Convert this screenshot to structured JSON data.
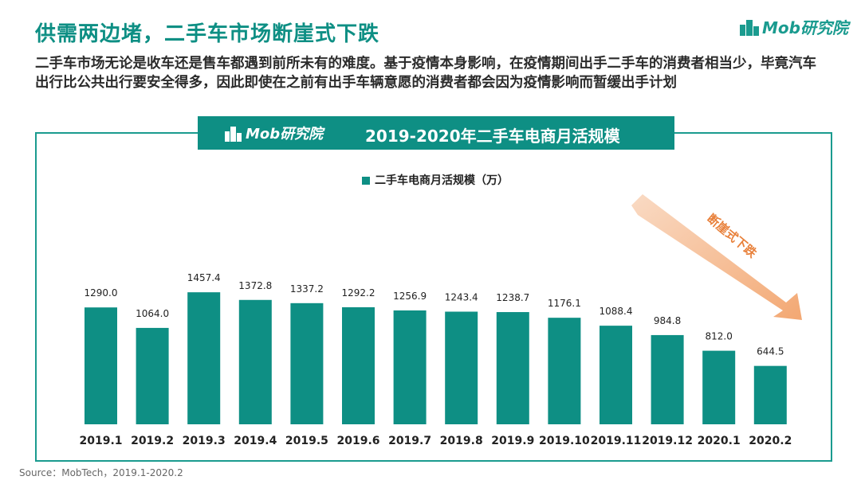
{
  "header": {
    "title": "供需两边堵，二手车市场断崖式下跌",
    "brand": "Mob研究院",
    "intro": "二手车市场无论是收车还是售车都遇到前所未有的难度。基于疫情本身影响，在疫情期间出手二手车的消费者相当少，毕竟汽车出行比公共出行要安全得多，因此即使在之前有出手车辆意愿的消费者都会因为疫情影响而暂缓出手计划"
  },
  "banner": {
    "brand": "Mob研究院",
    "title": "2019-2020年二手车电商月活规模"
  },
  "annotation": "断崖式下跌",
  "source": "Source：MobTech，2019.1-2020.2",
  "colors": {
    "bar": "#0e8f84",
    "accent": "#f2a36b"
  },
  "chart_data": {
    "type": "bar",
    "categories": [
      "2019.1",
      "2019.2",
      "2019.3",
      "2019.4",
      "2019.5",
      "2019.6",
      "2019.7",
      "2019.8",
      "2019.9",
      "2019.10",
      "2019.11",
      "2019.12",
      "2020.1",
      "2020.2"
    ],
    "series": [
      {
        "name": "二手车电商月活规模（万）",
        "values": [
          1290.0,
          1064.0,
          1457.4,
          1372.8,
          1337.2,
          1292.2,
          1256.9,
          1243.4,
          1238.7,
          1176.1,
          1088.4,
          984.8,
          812.0,
          644.5
        ]
      }
    ],
    "ylim": [
      0,
      1600
    ],
    "legend": "top-center",
    "grid": false
  }
}
